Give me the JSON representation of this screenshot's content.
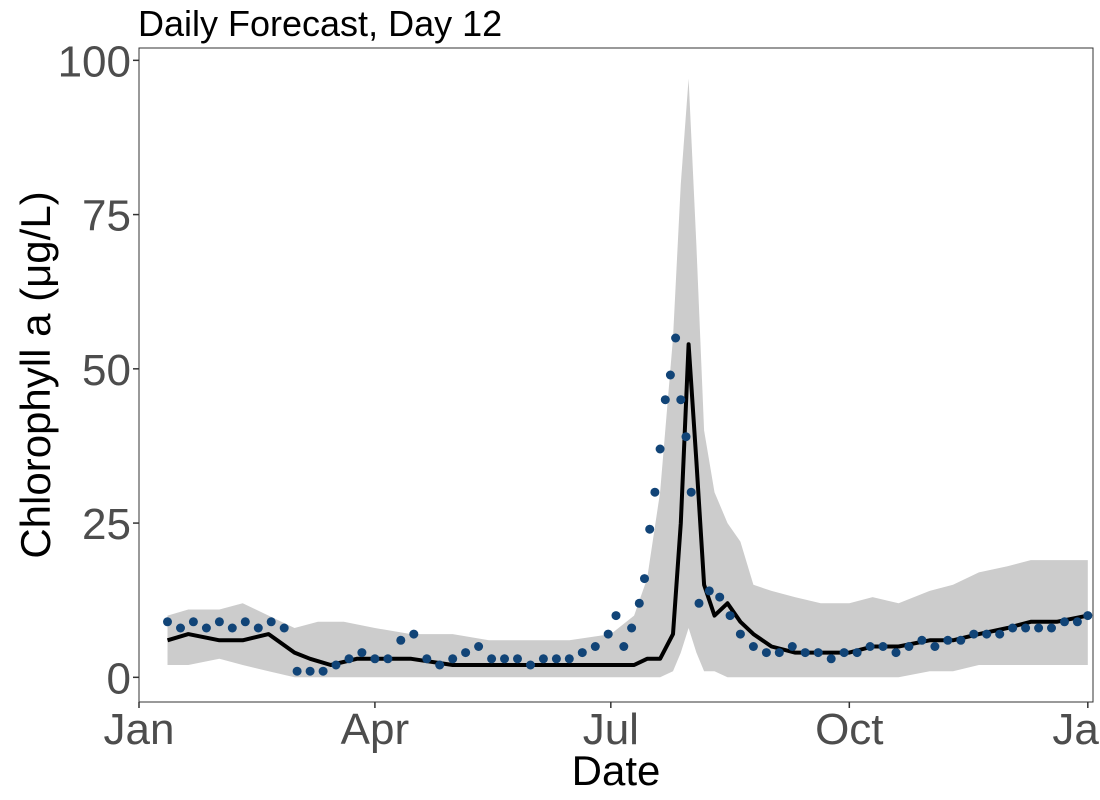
{
  "chart_data": {
    "type": "line",
    "title": "Daily Forecast, Day 12",
    "xlabel": "Date",
    "ylabel": "Chlorophyll a (μg/L)",
    "x_range": [
      "2020-01-01",
      "2021-01-03"
    ],
    "ylim": [
      -4,
      102
    ],
    "x_ticks": [
      {
        "date": "2020-01-01",
        "label": "Jan"
      },
      {
        "date": "2020-04-01",
        "label": "Apr"
      },
      {
        "date": "2020-07-01",
        "label": "Jul"
      },
      {
        "date": "2020-10-01",
        "label": "Oct"
      },
      {
        "date": "2021-01-01",
        "label": "Jan"
      }
    ],
    "y_ticks": [
      0,
      25,
      50,
      75,
      100
    ],
    "grid": false,
    "legend": "none",
    "colors": {
      "forecast_mean": "#000000",
      "forecast_interval": "#cccccc",
      "observations": "#114477",
      "axis_text": "#4d4d4d"
    },
    "series": [
      {
        "kind": "ribbon",
        "x": [
          "2020-01-12",
          "2020-01-20",
          "2020-02-01",
          "2020-02-10",
          "2020-02-20",
          "2020-03-01",
          "2020-03-10",
          "2020-03-20",
          "2020-04-01",
          "2020-04-15",
          "2020-05-01",
          "2020-05-15",
          "2020-06-01",
          "2020-06-15",
          "2020-07-01",
          "2020-07-10",
          "2020-07-15",
          "2020-07-20",
          "2020-07-25",
          "2020-07-28",
          "2020-07-31",
          "2020-08-03",
          "2020-08-06",
          "2020-08-10",
          "2020-08-15",
          "2020-08-20",
          "2020-08-25",
          "2020-09-01",
          "2020-09-10",
          "2020-09-20",
          "2020-10-01",
          "2020-10-10",
          "2020-10-20",
          "2020-11-01",
          "2020-11-10",
          "2020-11-20",
          "2020-12-01",
          "2020-12-10",
          "2020-12-20",
          "2021-01-01"
        ],
        "upper": [
          10,
          11,
          11,
          12,
          10,
          8,
          9,
          9,
          8,
          7,
          7,
          6,
          6,
          6,
          7,
          10,
          16,
          30,
          55,
          80,
          97,
          70,
          40,
          30,
          25,
          22,
          15,
          14,
          13,
          12,
          12,
          13,
          12,
          14,
          15,
          17,
          18,
          19,
          19,
          19
        ],
        "lower": [
          2,
          2,
          3,
          2,
          1,
          0,
          0,
          0,
          0,
          0,
          0,
          0,
          0,
          0,
          0,
          0,
          0,
          0,
          1,
          4,
          8,
          4,
          1,
          1,
          0,
          0,
          0,
          0,
          0,
          0,
          0,
          0,
          0,
          1,
          1,
          2,
          2,
          2,
          2,
          2
        ]
      },
      {
        "kind": "line",
        "x": [
          "2020-01-12",
          "2020-01-20",
          "2020-02-01",
          "2020-02-10",
          "2020-02-20",
          "2020-03-01",
          "2020-03-07",
          "2020-03-15",
          "2020-03-25",
          "2020-04-01",
          "2020-04-15",
          "2020-05-01",
          "2020-05-15",
          "2020-06-01",
          "2020-06-15",
          "2020-07-01",
          "2020-07-10",
          "2020-07-15",
          "2020-07-20",
          "2020-07-25",
          "2020-07-28",
          "2020-07-31",
          "2020-08-03",
          "2020-08-06",
          "2020-08-10",
          "2020-08-15",
          "2020-08-20",
          "2020-08-25",
          "2020-09-01",
          "2020-09-10",
          "2020-09-20",
          "2020-10-01",
          "2020-10-10",
          "2020-10-20",
          "2020-11-01",
          "2020-11-10",
          "2020-11-20",
          "2020-12-01",
          "2020-12-10",
          "2020-12-20",
          "2021-01-01"
        ],
        "y": [
          6,
          7,
          6,
          6,
          7,
          4,
          3,
          2,
          3,
          3,
          3,
          2,
          2,
          2,
          2,
          2,
          2,
          3,
          3,
          7,
          25,
          54,
          35,
          15,
          10,
          12,
          9,
          7,
          5,
          4,
          4,
          4,
          5,
          5,
          6,
          6,
          7,
          8,
          9,
          9,
          10
        ]
      },
      {
        "kind": "scatter",
        "x": [
          "2020-01-12",
          "2020-01-17",
          "2020-01-22",
          "2020-01-27",
          "2020-02-01",
          "2020-02-06",
          "2020-02-11",
          "2020-02-16",
          "2020-02-21",
          "2020-02-26",
          "2020-03-02",
          "2020-03-07",
          "2020-03-12",
          "2020-03-17",
          "2020-03-22",
          "2020-03-27",
          "2020-04-01",
          "2020-04-06",
          "2020-04-11",
          "2020-04-16",
          "2020-04-21",
          "2020-04-26",
          "2020-05-01",
          "2020-05-06",
          "2020-05-11",
          "2020-05-16",
          "2020-05-21",
          "2020-05-26",
          "2020-05-31",
          "2020-06-05",
          "2020-06-10",
          "2020-06-15",
          "2020-06-20",
          "2020-06-25",
          "2020-06-30",
          "2020-07-03",
          "2020-07-06",
          "2020-07-09",
          "2020-07-12",
          "2020-07-14",
          "2020-07-16",
          "2020-07-18",
          "2020-07-20",
          "2020-07-22",
          "2020-07-24",
          "2020-07-26",
          "2020-07-28",
          "2020-07-30",
          "2020-08-01",
          "2020-08-04",
          "2020-08-08",
          "2020-08-12",
          "2020-08-16",
          "2020-08-20",
          "2020-08-25",
          "2020-08-30",
          "2020-09-04",
          "2020-09-09",
          "2020-09-14",
          "2020-09-19",
          "2020-09-24",
          "2020-09-29",
          "2020-10-04",
          "2020-10-09",
          "2020-10-14",
          "2020-10-19",
          "2020-10-24",
          "2020-10-29",
          "2020-11-03",
          "2020-11-08",
          "2020-11-13",
          "2020-11-18",
          "2020-11-23",
          "2020-11-28",
          "2020-12-03",
          "2020-12-08",
          "2020-12-13",
          "2020-12-18",
          "2020-12-23",
          "2020-12-28",
          "2021-01-01"
        ],
        "y": [
          9,
          8,
          9,
          8,
          9,
          8,
          9,
          8,
          9,
          8,
          1,
          1,
          1,
          2,
          3,
          4,
          3,
          3,
          6,
          7,
          3,
          2,
          3,
          4,
          5,
          3,
          3,
          3,
          2,
          3,
          3,
          3,
          4,
          5,
          7,
          10,
          5,
          8,
          12,
          16,
          24,
          30,
          37,
          45,
          49,
          55,
          45,
          39,
          30,
          12,
          14,
          13,
          10,
          7,
          5,
          4,
          4,
          5,
          4,
          4,
          3,
          4,
          4,
          5,
          5,
          4,
          5,
          6,
          5,
          6,
          6,
          7,
          7,
          7,
          8,
          8,
          8,
          8,
          9,
          9,
          10
        ]
      }
    ]
  }
}
